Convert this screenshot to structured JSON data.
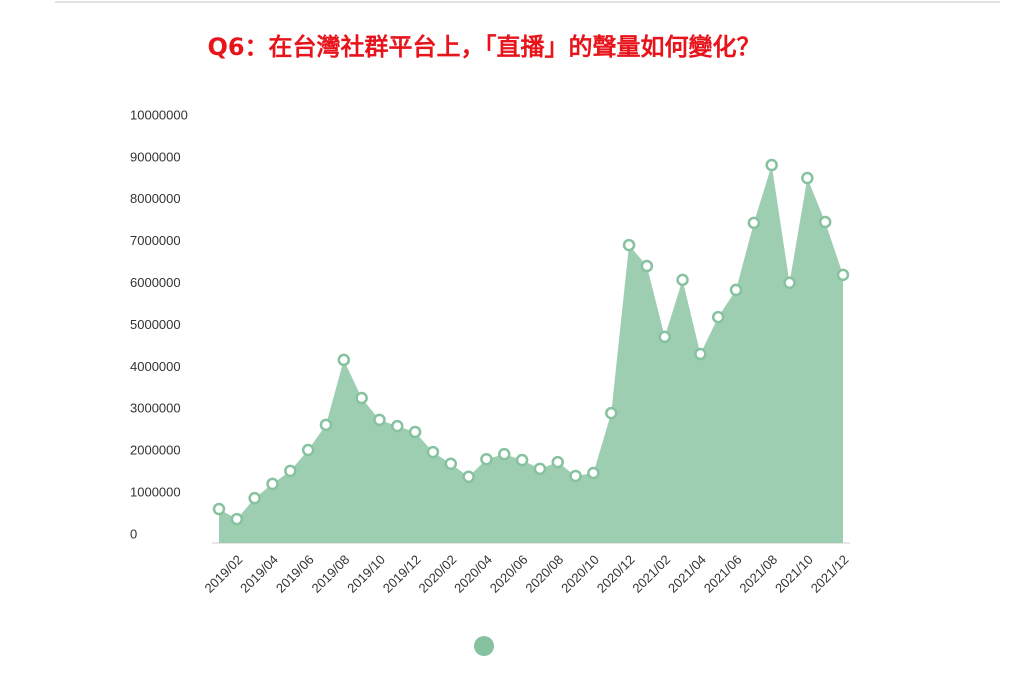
{
  "chart_data": {
    "type": "area",
    "title": "Q6：在台灣社群平台上，「直播」的聲量如何變化？",
    "categories": [
      null,
      "2019/02",
      null,
      "2019/04",
      null,
      "2019/06",
      null,
      "2019/08",
      null,
      "2019/10",
      null,
      "2019/12",
      null,
      "2020/02",
      null,
      "2020/04",
      null,
      "2020/06",
      null,
      "2020/08",
      null,
      "2020/10",
      null,
      "2020/12",
      null,
      "2021/02",
      null,
      "2021/04",
      null,
      "2021/06",
      null,
      "2021/08",
      null,
      "2021/10",
      null,
      "2021/12"
    ],
    "series": [
      {
        "color": "#86c29f",
        "values": [
          810000,
          570000,
          1070000,
          1410000,
          1720000,
          2220000,
          2820000,
          4370000,
          3460000,
          2940000,
          2790000,
          2650000,
          2170000,
          1890000,
          1580000,
          2000000,
          2120000,
          1980000,
          1770000,
          1930000,
          1600000,
          1670000,
          3100000,
          7110000,
          6610000,
          4920000,
          6280000,
          4510000,
          5390000,
          6040000,
          7640000,
          9020000,
          6210000,
          8710000,
          7660000,
          6400000
        ]
      }
    ],
    "ylim": [
      0,
      10000000
    ],
    "yticks": [
      0,
      1000000,
      2000000,
      3000000,
      4000000,
      5000000,
      6000000,
      7000000,
      8000000,
      9000000,
      10000000
    ]
  }
}
